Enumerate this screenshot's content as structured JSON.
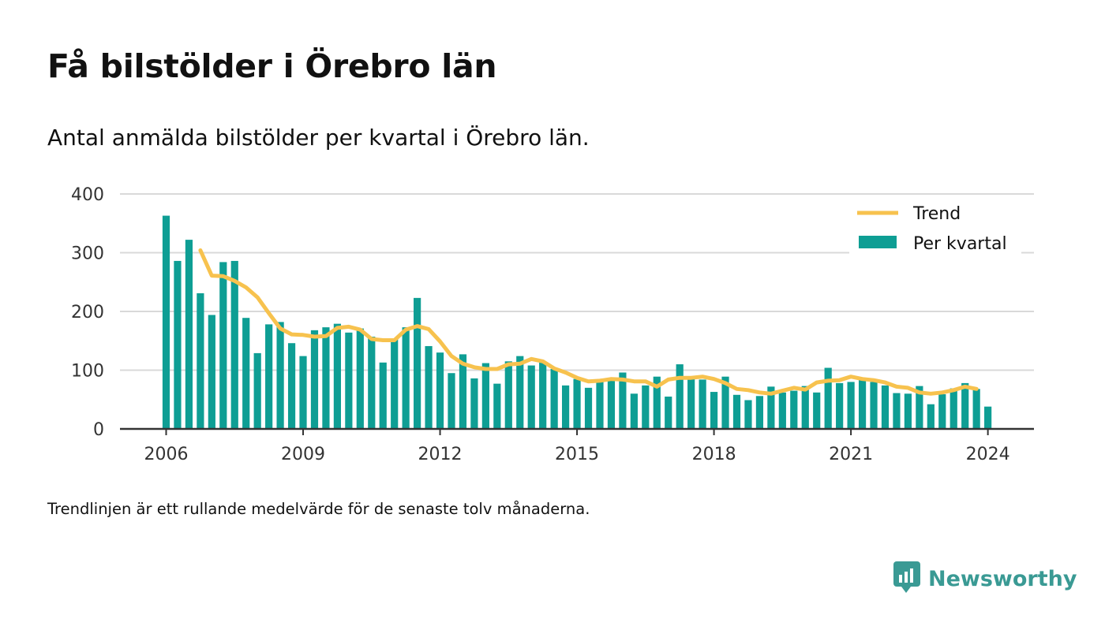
{
  "title": "Få bilstölder i Örebro län",
  "subtitle": "Antal anmälda bilstölder per kvartal i Örebro län.",
  "footnote": "Trendlinjen är ett rullande medelvärde för de senaste tolv månaderna.",
  "brand": {
    "name": "Newsworthy",
    "icon": "newsworthy-logo-icon"
  },
  "colors": {
    "bars": "#0e9e94",
    "trend": "#f7c24e",
    "grid": "#d9d9d9",
    "axis": "#333333"
  },
  "chart_data": {
    "type": "bar",
    "title": "Få bilstölder i Örebro län",
    "subtitle": "Antal anmälda bilstölder per kvartal i Örebro län.",
    "xlabel": "",
    "ylabel": "",
    "ylim": [
      0,
      400
    ],
    "yticks": [
      0,
      100,
      200,
      300,
      400
    ],
    "xticks": [
      "2006",
      "2009",
      "2012",
      "2015",
      "2018",
      "2021",
      "2024"
    ],
    "grid": true,
    "legend_position": "top-right",
    "x_start_year": 2006,
    "series": [
      {
        "name": "Per kvartal",
        "kind": "bar",
        "values": [
          363,
          286,
          322,
          231,
          194,
          284,
          286,
          189,
          129,
          178,
          182,
          146,
          124,
          168,
          173,
          179,
          164,
          171,
          157,
          113,
          153,
          173,
          223,
          141,
          130,
          95,
          127,
          86,
          112,
          77,
          115,
          124,
          108,
          113,
          102,
          74,
          85,
          70,
          82,
          83,
          96,
          60,
          74,
          89,
          55,
          110,
          85,
          84,
          63,
          89,
          58,
          49,
          56,
          72,
          62,
          65,
          73,
          62,
          104,
          78,
          80,
          85,
          80,
          74,
          61,
          60,
          73,
          42,
          59,
          69,
          78,
          68,
          38
        ]
      },
      {
        "name": "Trend",
        "kind": "line",
        "start_index": 3,
        "values": [
          304,
          261,
          260,
          252,
          241,
          224,
          197,
          171,
          161,
          160,
          157,
          158,
          172,
          174,
          169,
          153,
          151,
          151,
          169,
          175,
          170,
          149,
          124,
          111,
          105,
          102,
          102,
          110,
          111,
          119,
          115,
          103,
          96,
          87,
          81,
          82,
          85,
          84,
          81,
          81,
          72,
          84,
          87,
          87,
          89,
          85,
          78,
          68,
          66,
          62,
          60,
          65,
          70,
          67,
          79,
          82,
          83,
          89,
          85,
          83,
          79,
          72,
          70,
          62,
          60,
          62,
          66,
          72,
          68
        ]
      }
    ]
  },
  "legend": [
    {
      "label": "Trend",
      "symbol": "line"
    },
    {
      "label": "Per kvartal",
      "symbol": "box"
    }
  ]
}
